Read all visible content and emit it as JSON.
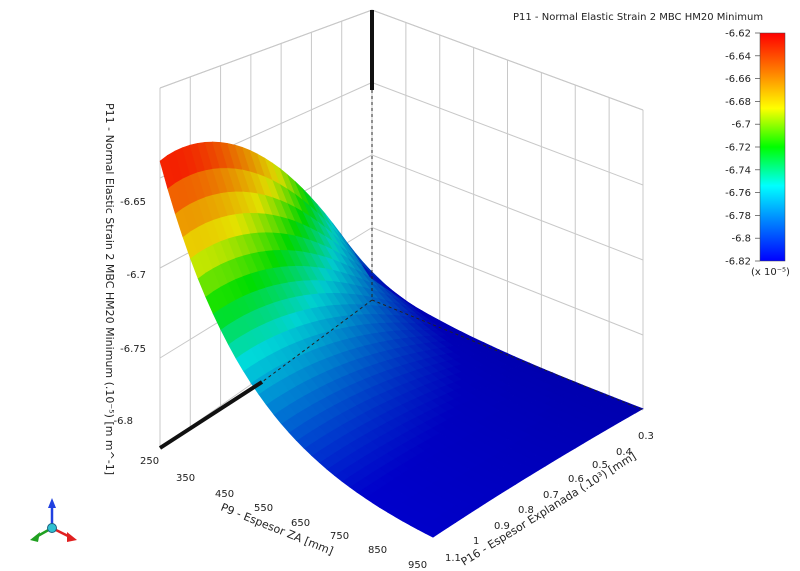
{
  "chart_data": {
    "type": "surface3d",
    "title": "P11 - Normal Elastic Strain 2 MBC HM20 Minimum",
    "x_axis": {
      "label": "P9 - Espesor ZA  [mm]",
      "ticks": [
        "250",
        "350",
        "450",
        "550",
        "650",
        "750",
        "850",
        "950"
      ],
      "range": [
        250,
        950
      ]
    },
    "y_axis": {
      "label": "P16 - Espesor Explanada  (.10³)  [mm]",
      "ticks": [
        "0.3",
        "0.4",
        "0.5",
        "0.6",
        "0.7",
        "0.8",
        "0.9",
        "1",
        "1.1"
      ],
      "range": [
        0.3,
        1.1
      ]
    },
    "z_axis": {
      "label": "P11 - Normal Elastic Strain 2 MBC HM20 Minimum  (.10⁻⁵)  [m m^-1]",
      "ticks": [
        "-6.8",
        "-6.75",
        "-6.7",
        "-6.65"
      ],
      "range": [
        -6.82,
        -6.62
      ]
    },
    "colorbar": {
      "ticks": [
        "-6.62",
        "-6.64",
        "-6.66",
        "-6.68",
        "-6.7",
        "-6.72",
        "-6.74",
        "-6.76",
        "-6.78",
        "-6.8",
        "-6.82"
      ],
      "multiplier": "(x 10⁻⁵)",
      "range": [
        -6.82,
        -6.62
      ],
      "colors": [
        "#ff0000",
        "#ff8000",
        "#ffff00",
        "#00ff00",
        "#00ffff",
        "#0080ff",
        "#0000ff"
      ]
    },
    "corner_values": {
      "za_250_expl_0.3": -6.82,
      "za_250_expl_1.1": -6.62,
      "za_950_expl_1.1": -6.84,
      "za_950_expl_0.3": -6.84
    },
    "grid": true,
    "legend_position": "top-right"
  },
  "triad": {
    "x_color": "#e02020",
    "y_color": "#20a020",
    "z_color": "#2040e0"
  }
}
